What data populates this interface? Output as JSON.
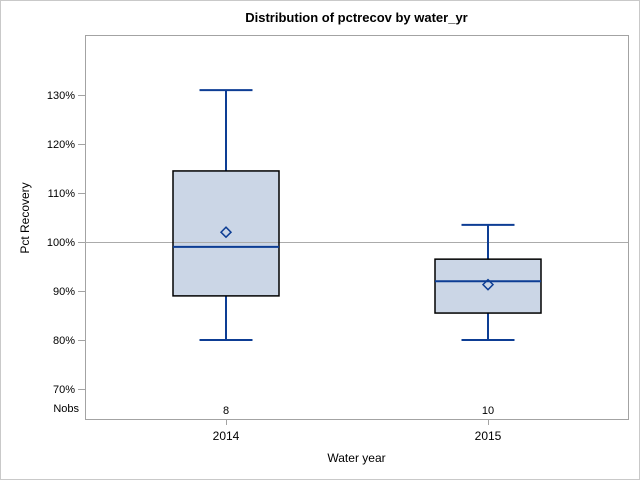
{
  "figure": {
    "title": "Distribution of pctrecov by water_yr",
    "y_axis_label": "Pct Recovery",
    "x_axis_label": "Water year",
    "nobs_row_label": "Nobs"
  },
  "chart_data": {
    "type": "box",
    "title": "Distribution of pctrecov by water_yr",
    "xlabel": "Water year",
    "ylabel": "Pct Recovery",
    "categories": [
      "2014",
      "2015"
    ],
    "y_ticks": [
      {
        "value": 130,
        "label": "130%"
      },
      {
        "value": 120,
        "label": "120%"
      },
      {
        "value": 110,
        "label": "110%"
      },
      {
        "value": 100,
        "label": "100%"
      },
      {
        "value": 90,
        "label": "90%"
      },
      {
        "value": 80,
        "label": "80%"
      },
      {
        "value": 70,
        "label": "70%"
      }
    ],
    "ylim_percent": [
      64,
      142
    ],
    "reference_line_percent": 100,
    "grid": "off",
    "legend": "none",
    "series": [
      {
        "category": "2014",
        "nobs": 8,
        "whisker_low": 80,
        "q1": 89,
        "median": 99,
        "mean": 102,
        "q3": 114.5,
        "whisker_high": 131
      },
      {
        "category": "2015",
        "nobs": 10,
        "whisker_low": 80,
        "q1": 85.5,
        "median": 92,
        "mean": 91.3,
        "q3": 96.5,
        "whisker_high": 103.5
      }
    ]
  },
  "colors": {
    "background": "#ffffff",
    "figure_border": "#c9c9c9",
    "axis_line": "#a3a3a3",
    "reference_line": "#ababab",
    "box_fill": "#cbd6e6",
    "box_outline": "#000000",
    "whisker_line": "#0d3d94",
    "text": "#000000"
  }
}
